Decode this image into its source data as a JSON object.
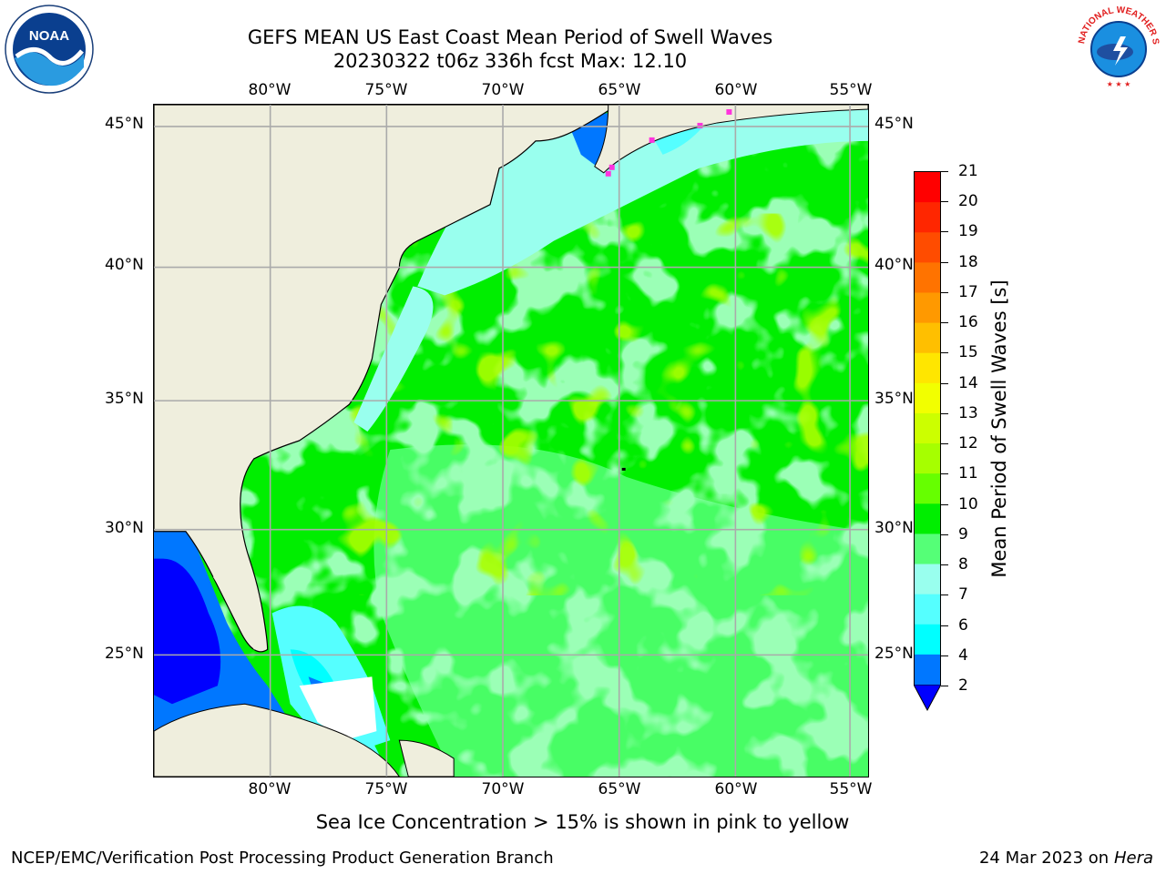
{
  "title": {
    "line1": "GEFS MEAN US East Coast Mean Period of Swell Waves",
    "line2": "20230322 t06z 336h fcst   Max: 12.10"
  },
  "map": {
    "lon_labels": [
      "80°W",
      "75°W",
      "70°W",
      "65°W",
      "60°W",
      "55°W"
    ],
    "lat_labels": [
      "45°N",
      "40°N",
      "35°N",
      "30°N",
      "25°N"
    ],
    "colors": {
      "land": "#efeedd",
      "ocean_dominant": "#00ee00",
      "grid": "#aaaaaa"
    }
  },
  "colorbar": {
    "label": "Mean Period of Swell Waves [s]",
    "ticks": [
      "21",
      "20",
      "19",
      "18",
      "17",
      "16",
      "15",
      "14",
      "13",
      "12",
      "11",
      "10",
      "9",
      "8",
      "7",
      "6",
      "4",
      "2"
    ],
    "colors": [
      "#ff0000",
      "#ff2600",
      "#ff4c00",
      "#ff7300",
      "#ff9900",
      "#ffbf00",
      "#ffe600",
      "#f2ff00",
      "#ccff00",
      "#a6ff00",
      "#66ff00",
      "#00ee00",
      "#55ff77",
      "#99ffee",
      "#55ffff",
      "#00ffff",
      "#0077ff",
      "#0000ff"
    ]
  },
  "note": "Sea Ice Concentration > 15% is shown in pink to yellow",
  "footer": {
    "left": "NCEP/EMC/Verification Post Processing Product Generation Branch",
    "date": "24 Mar 2023 on",
    "host": "Hera"
  },
  "logos": {
    "noaa_text": "NOAA",
    "nws_text": "NATIONAL WEATHER SERVICE"
  }
}
